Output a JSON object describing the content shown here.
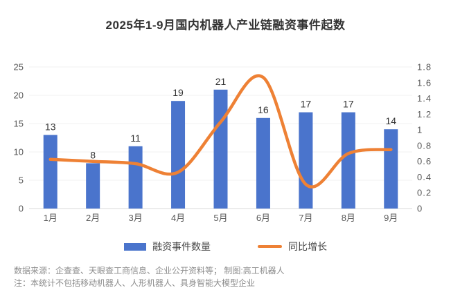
{
  "title": "2025年1-9月国内机器人产业链融资事件起数",
  "chart_data": {
    "type": "bar",
    "subtype": "bar+line-combo",
    "categories": [
      "1月",
      "2月",
      "3月",
      "4月",
      "5月",
      "6月",
      "7月",
      "8月",
      "9月"
    ],
    "series": [
      {
        "name": "融资事件数量",
        "type": "bar",
        "axis": "left",
        "color": "#4A74CC",
        "values": [
          13,
          8,
          11,
          19,
          21,
          16,
          17,
          17,
          14
        ],
        "data_labels": [
          "13",
          "8",
          "11",
          "19",
          "21",
          "16",
          "17",
          "17",
          "14"
        ]
      },
      {
        "name": "同比增长",
        "type": "line",
        "smooth": true,
        "axis": "right",
        "color": "#EE8135",
        "values": [
          0.625,
          0.6,
          0.571,
          0.462,
          1.1,
          1.667,
          0.308,
          0.7,
          0.75
        ]
      }
    ],
    "left_axis": {
      "min": 0,
      "max": 25,
      "step": 5,
      "tick_labels": [
        "0",
        "5",
        "10",
        "15",
        "20",
        "25"
      ]
    },
    "right_axis": {
      "min": 0,
      "max": 1.8,
      "step": 0.2,
      "tick_labels": [
        "0",
        "0.2",
        "0.4",
        "0.6",
        "0.8",
        "1",
        "1.2",
        "1.4",
        "1.6",
        "1.8"
      ]
    },
    "grid": true,
    "legend_position": "bottom",
    "colors": {
      "grid_line": "#F0F0F0",
      "axis_line": "#D9D9D9",
      "tick_label": "#595959",
      "data_label": "#333333"
    }
  },
  "legend": {
    "bar_label": "融资事件数量",
    "line_label": "同比增长"
  },
  "footer": {
    "source": "数据来源：企查查、天眼查工商信息、企业公开资料等； 制图:高工机器人",
    "note": "注：本统计不包括移动机器人、人形机器人、具身智能大模型企业"
  }
}
